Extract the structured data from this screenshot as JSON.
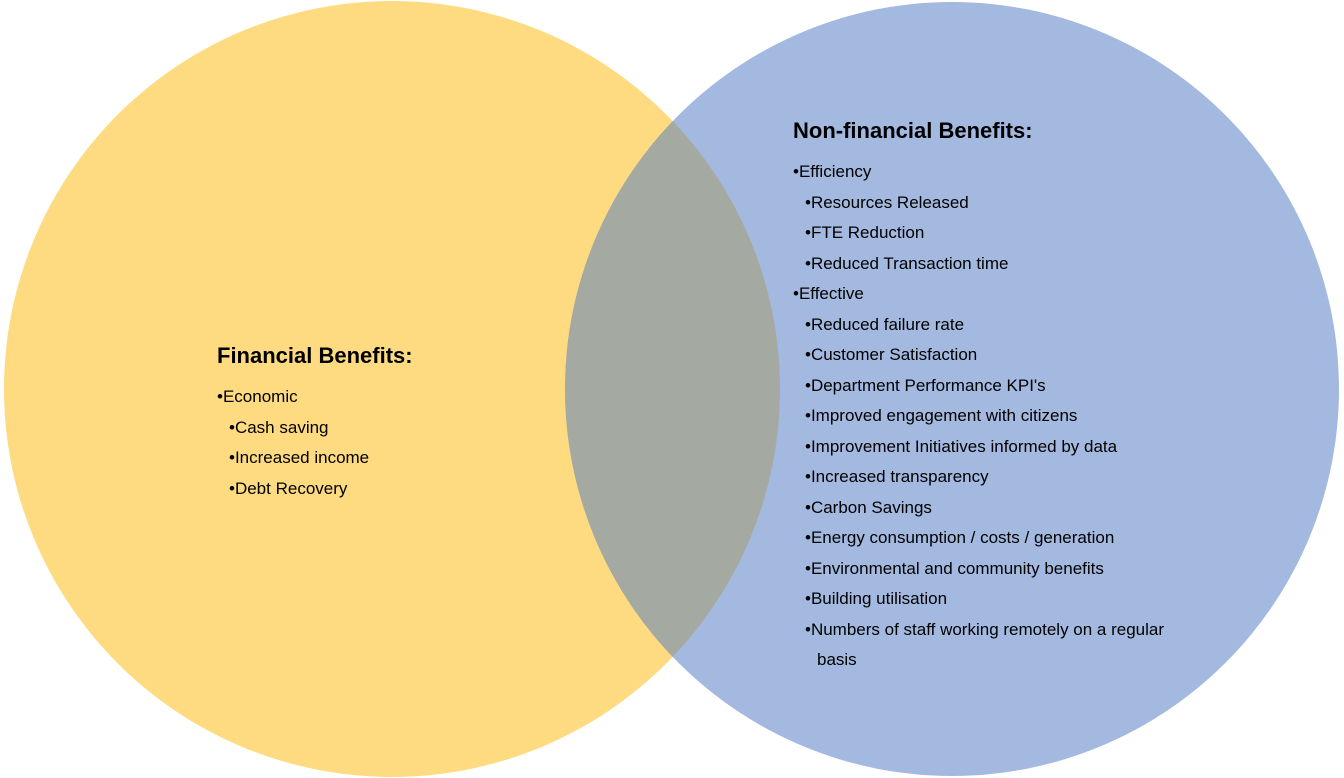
{
  "left": {
    "title": "Financial Benefits:",
    "groups": [
      {
        "label": "•Economic",
        "items": [
          "•Cash saving",
          "•Increased income",
          "•Debt Recovery"
        ]
      }
    ]
  },
  "right": {
    "title": "Non-financial Benefits:",
    "groups": [
      {
        "label": "•Efficiency",
        "items": [
          "•Resources Released",
          "•FTE Reduction",
          "•Reduced Transaction time"
        ]
      },
      {
        "label": "•Effective",
        "items": [
          "•Reduced failure rate",
          "•Customer Satisfaction",
          "•Department Performance KPI's",
          "•Improved engagement with citizens",
          "•Improvement Initiatives informed by data",
          "•Increased transparency",
          "•Carbon Savings",
          "•Energy consumption / costs / generation",
          "•Environmental and community benefits",
          "•Building utilisation",
          "•Numbers of staff working remotely on a regular basis"
        ]
      }
    ]
  }
}
